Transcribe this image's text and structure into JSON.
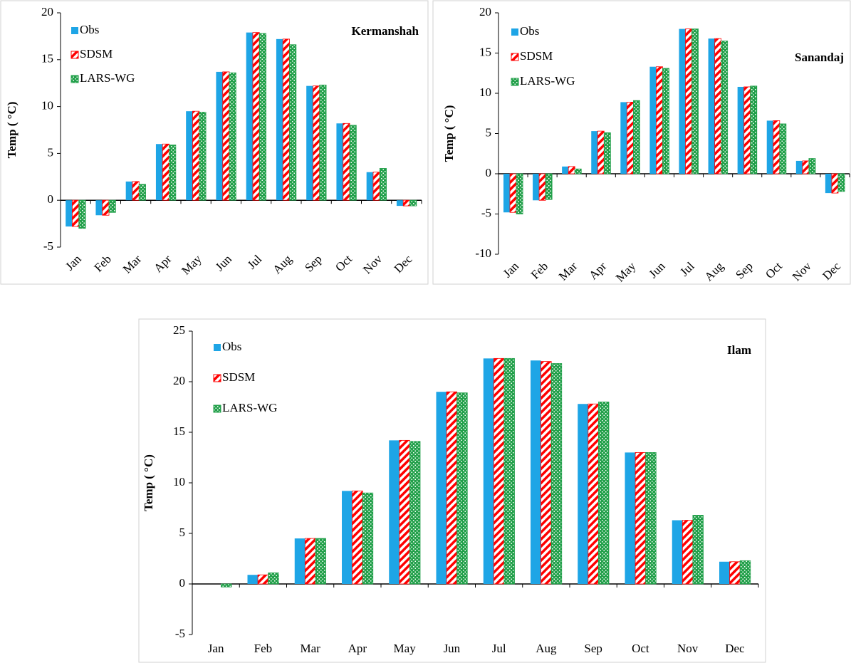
{
  "chart_data": [
    {
      "type": "bar",
      "title": "Kermanshah",
      "ylabel": "Temp ( °C)",
      "rotate_xticks": true,
      "categories": [
        "Jan",
        "Feb",
        "Mar",
        "Apr",
        "May",
        "Jun",
        "Jul",
        "Aug",
        "Sep",
        "Oct",
        "Nov",
        "Dec"
      ],
      "series": [
        {
          "name": "Obs",
          "color": "#1ea5e6",
          "hatch": "solid",
          "values": [
            -2.8,
            -1.6,
            2.0,
            6.0,
            9.5,
            13.7,
            17.9,
            17.2,
            12.2,
            8.2,
            3.0,
            -0.6
          ]
        },
        {
          "name": "SDSM",
          "color": "#ff0000",
          "hatch": "stripes",
          "values": [
            -2.8,
            -1.6,
            2.0,
            6.0,
            9.5,
            13.7,
            17.9,
            17.2,
            12.2,
            8.2,
            3.0,
            -0.6
          ]
        },
        {
          "name": "LARS-WG",
          "color": "#22a04a",
          "hatch": "dots",
          "values": [
            -3.0,
            -1.3,
            1.7,
            5.9,
            9.4,
            13.6,
            17.8,
            16.6,
            12.3,
            8.0,
            3.4,
            -0.6
          ]
        }
      ],
      "ylim": [
        -5,
        20
      ],
      "yticks": [
        -5,
        0,
        5,
        10,
        15,
        20
      ]
    },
    {
      "type": "bar",
      "title": "Sanandaj",
      "ylabel": "Temp ( °C)",
      "rotate_xticks": true,
      "categories": [
        "Jan",
        "Feb",
        "Mar",
        "Apr",
        "May",
        "Jun",
        "Jul",
        "Aug",
        "Sep",
        "Oct",
        "Nov",
        "Dec"
      ],
      "series": [
        {
          "name": "Obs",
          "color": "#1ea5e6",
          "hatch": "solid",
          "values": [
            -4.8,
            -3.3,
            0.9,
            5.3,
            8.9,
            13.3,
            18.0,
            16.8,
            10.8,
            6.6,
            1.6,
            -2.4
          ]
        },
        {
          "name": "SDSM",
          "color": "#ff0000",
          "hatch": "stripes",
          "values": [
            -4.8,
            -3.3,
            0.9,
            5.3,
            8.9,
            13.3,
            18.0,
            16.8,
            10.8,
            6.6,
            1.6,
            -2.4
          ]
        },
        {
          "name": "LARS-WG",
          "color": "#22a04a",
          "hatch": "dots",
          "values": [
            -5.0,
            -3.2,
            0.6,
            5.1,
            9.1,
            13.1,
            18.0,
            16.5,
            10.9,
            6.2,
            1.9,
            -2.2
          ]
        }
      ],
      "ylim": [
        -10,
        20
      ],
      "yticks": [
        -10,
        -5,
        0,
        5,
        10,
        15,
        20
      ]
    },
    {
      "type": "bar",
      "title": "Ilam",
      "ylabel": "Temp ( °C)",
      "rotate_xticks": false,
      "categories": [
        "Jan",
        "Feb",
        "Mar",
        "Apr",
        "May",
        "Jun",
        "Jul",
        "Aug",
        "Sep",
        "Oct",
        "Nov",
        "Dec"
      ],
      "series": [
        {
          "name": "Obs",
          "color": "#1ea5e6",
          "hatch": "solid",
          "values": [
            0,
            0.9,
            4.5,
            9.2,
            14.2,
            19.0,
            22.3,
            22.1,
            17.8,
            13.0,
            6.3,
            2.2
          ]
        },
        {
          "name": "SDSM",
          "color": "#ff0000",
          "hatch": "stripes",
          "values": [
            0,
            0.9,
            4.5,
            9.2,
            14.2,
            19.0,
            22.3,
            22.0,
            17.8,
            13.0,
            6.3,
            2.2
          ]
        },
        {
          "name": "LARS-WG",
          "color": "#22a04a",
          "hatch": "dots",
          "values": [
            -0.3,
            1.1,
            4.5,
            9.0,
            14.1,
            18.9,
            22.3,
            21.8,
            18.0,
            13.0,
            6.8,
            2.3
          ]
        }
      ],
      "ylim": [
        -5,
        25
      ],
      "yticks": [
        -5,
        0,
        5,
        10,
        15,
        20,
        25
      ]
    }
  ]
}
